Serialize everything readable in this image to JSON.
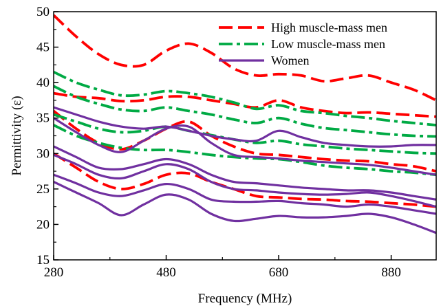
{
  "chart_data": {
    "type": "line",
    "title": "",
    "xlabel": "Frequency (MHz)",
    "ylabel": "Permittivity (ε)",
    "xlim": [
      280,
      960
    ],
    "ylim": [
      15,
      50
    ],
    "xticks": [
      "280",
      "480",
      "680",
      "880"
    ],
    "yticks": [
      "15",
      "20",
      "25",
      "30",
      "35",
      "40",
      "45",
      "50"
    ],
    "grid": false,
    "legend_position": "top-right",
    "groups": [
      {
        "name": "High muscle-mass men",
        "color": "#ff0000",
        "style": "dash"
      },
      {
        "name": "Low muscle-mass men",
        "color": "#00aa44",
        "style": "dashdot"
      },
      {
        "name": "Women",
        "color": "#7030a0",
        "style": "solid"
      }
    ],
    "series": [
      {
        "group": 0,
        "x": [
          280,
          320,
          360,
          400,
          440,
          480,
          520,
          560,
          600,
          640,
          680,
          720,
          760,
          800,
          840,
          880,
          920,
          960
        ],
        "y": [
          49.5,
          46.5,
          44,
          42.5,
          42.5,
          44.5,
          45.5,
          44.2,
          42,
          41,
          41.2,
          41,
          40.2,
          40.6,
          41,
          40,
          39,
          37.5
        ]
      },
      {
        "group": 0,
        "x": [
          280,
          320,
          360,
          400,
          440,
          480,
          520,
          560,
          600,
          640,
          680,
          720,
          760,
          800,
          840,
          880,
          920,
          960
        ],
        "y": [
          38.5,
          38,
          37.8,
          37.4,
          37.5,
          38,
          38,
          37.5,
          37,
          36.5,
          37.5,
          36.5,
          36,
          35.7,
          35.8,
          35.6,
          35.4,
          35.2
        ]
      },
      {
        "group": 0,
        "x": [
          280,
          320,
          360,
          400,
          440,
          480,
          520,
          560,
          600,
          640,
          680,
          720,
          760,
          800,
          840,
          880,
          920,
          960
        ],
        "y": [
          36,
          33.5,
          31.5,
          30.6,
          31.8,
          33.5,
          34.5,
          32.5,
          31,
          30,
          29.8,
          29.5,
          29.2,
          29,
          28.9,
          28.5,
          28.2,
          27.5
        ]
      },
      {
        "group": 0,
        "x": [
          280,
          320,
          360,
          400,
          440,
          480,
          520,
          560,
          600,
          640,
          680,
          720,
          760,
          800,
          840,
          880,
          920,
          960
        ],
        "y": [
          30,
          28,
          26,
          25,
          25.7,
          27,
          27.2,
          26,
          25,
          24,
          23.8,
          23.6,
          23.5,
          23.3,
          23.2,
          23,
          22.8,
          22.5
        ]
      },
      {
        "group": 1,
        "x": [
          280,
          320,
          360,
          400,
          440,
          480,
          520,
          560,
          600,
          640,
          680,
          720,
          760,
          800,
          840,
          880,
          920,
          960
        ],
        "y": [
          41.5,
          40,
          39,
          38.2,
          38.3,
          38.8,
          38.5,
          38,
          37.2,
          36.3,
          36.8,
          36,
          35.7,
          35.3,
          35,
          34.6,
          34.3,
          34
        ]
      },
      {
        "group": 1,
        "x": [
          280,
          320,
          360,
          400,
          440,
          480,
          520,
          560,
          600,
          640,
          680,
          720,
          760,
          800,
          840,
          880,
          920,
          960
        ],
        "y": [
          39.5,
          38,
          37,
          36.2,
          36,
          36.5,
          36,
          35.5,
          34.8,
          34.3,
          35,
          34.2,
          33.6,
          33.3,
          33,
          32.7,
          32.5,
          32.4
        ]
      },
      {
        "group": 1,
        "x": [
          280,
          320,
          360,
          400,
          440,
          480,
          520,
          560,
          600,
          640,
          680,
          720,
          760,
          800,
          840,
          880,
          920,
          960
        ],
        "y": [
          35.5,
          34.5,
          33.5,
          33,
          33.2,
          33.8,
          33.2,
          32.6,
          32,
          31.5,
          31.8,
          31.3,
          31,
          30.7,
          30.5,
          30.3,
          30.1,
          30
        ]
      },
      {
        "group": 1,
        "x": [
          280,
          320,
          360,
          400,
          440,
          480,
          520,
          560,
          600,
          640,
          680,
          720,
          760,
          800,
          840,
          880,
          920,
          960
        ],
        "y": [
          34,
          32.5,
          31.5,
          30.8,
          30.5,
          30.5,
          30.2,
          29.8,
          29.5,
          29.3,
          29.2,
          28.8,
          28.3,
          28,
          27.8,
          27.5,
          27.3,
          27
        ]
      },
      {
        "group": 2,
        "x": [
          280,
          320,
          360,
          400,
          440,
          480,
          520,
          560,
          600,
          640,
          680,
          720,
          760,
          800,
          840,
          880,
          920,
          960
        ],
        "y": [
          36.5,
          35.5,
          34.5,
          33.8,
          33.5,
          33.8,
          33.2,
          32.5,
          32,
          31.8,
          33.2,
          32.3,
          31.5,
          31.2,
          31,
          31,
          31.2,
          31.2
        ]
      },
      {
        "group": 2,
        "x": [
          280,
          320,
          360,
          400,
          440,
          480,
          520,
          560,
          600,
          640,
          680,
          720,
          760,
          800,
          840,
          880,
          920,
          960
        ],
        "y": [
          35,
          33,
          31.2,
          30.2,
          31.8,
          33.5,
          33.8,
          31.5,
          29.8,
          29.5,
          29.3,
          29,
          28.8,
          28.6,
          28.4,
          28,
          27.5,
          27
        ]
      },
      {
        "group": 2,
        "x": [
          280,
          320,
          360,
          400,
          440,
          480,
          520,
          560,
          600,
          640,
          680,
          720,
          760,
          800,
          840,
          880,
          920,
          960
        ],
        "y": [
          31,
          29.5,
          28,
          27.8,
          28.5,
          29.2,
          28.5,
          27,
          26,
          25.8,
          25.5,
          25.2,
          25,
          24.8,
          24.8,
          24.5,
          24,
          23.5
        ]
      },
      {
        "group": 2,
        "x": [
          280,
          320,
          360,
          400,
          440,
          480,
          520,
          560,
          600,
          640,
          680,
          720,
          760,
          800,
          840,
          880,
          920,
          960
        ],
        "y": [
          29.8,
          28.5,
          27,
          26.5,
          27.5,
          28.5,
          27.8,
          26,
          25,
          24.8,
          24.5,
          24.3,
          24.2,
          24.3,
          24.5,
          24,
          23.3,
          22.5
        ]
      },
      {
        "group": 2,
        "x": [
          280,
          320,
          360,
          400,
          440,
          480,
          520,
          560,
          600,
          640,
          680,
          720,
          760,
          800,
          840,
          880,
          920,
          960
        ],
        "y": [
          27,
          25.8,
          24.5,
          24,
          24.8,
          25.7,
          25,
          23.5,
          23.2,
          23.2,
          23.3,
          23,
          22.8,
          22.5,
          22.8,
          22.5,
          22,
          21.5
        ]
      },
      {
        "group": 2,
        "x": [
          280,
          320,
          360,
          400,
          440,
          480,
          520,
          560,
          600,
          640,
          680,
          720,
          760,
          800,
          840,
          880,
          920,
          960
        ],
        "y": [
          26,
          24.5,
          23,
          21.3,
          22.8,
          24.2,
          23.5,
          21.5,
          20.5,
          20.8,
          21.2,
          21,
          21,
          21.2,
          21.5,
          21,
          20,
          18.8
        ]
      }
    ]
  }
}
